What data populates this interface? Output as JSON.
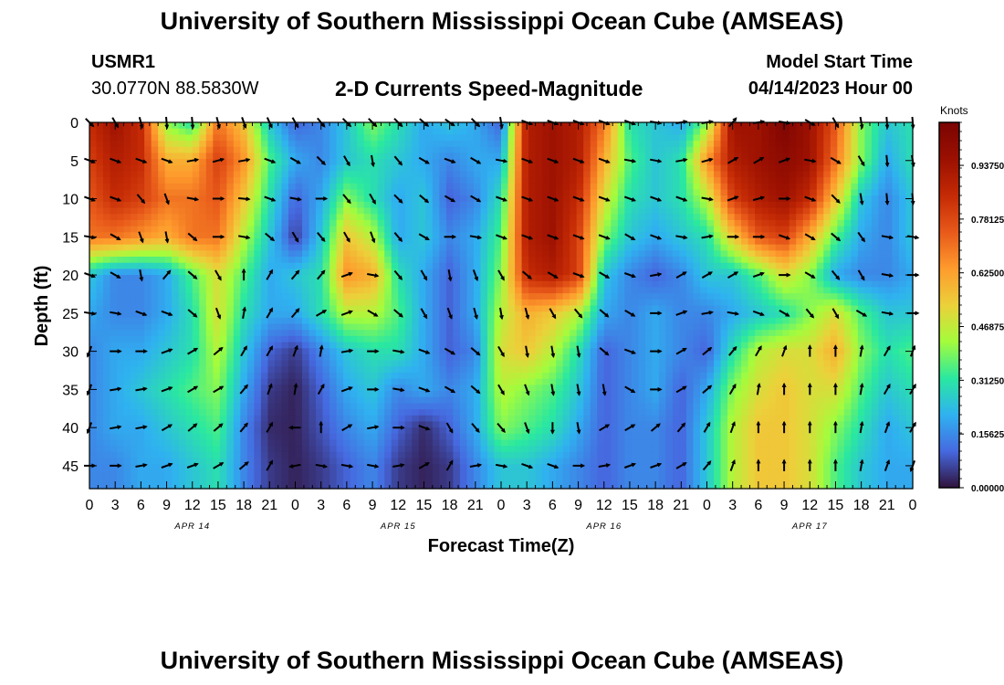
{
  "header": {
    "title": "University of Southern Mississippi Ocean Cube (AMSEAS)",
    "station_id": "USMR1",
    "station_coords": "30.0770N  88.5830W",
    "subtitle": "2-D Currents Speed-Magnitude",
    "model_start_label": "Model Start Time",
    "model_start_value": "04/14/2023 Hour 00",
    "bottom_title": "University of Southern Mississippi Ocean Cube (AMSEAS)"
  },
  "chart_data": {
    "type": "heatmap",
    "title": "2-D Currents Speed-Magnitude",
    "xlabel": "Forecast Time(Z)",
    "ylabel": "Depth (ft)",
    "x_tick_labels": [
      "0",
      "3",
      "6",
      "9",
      "12",
      "15",
      "18",
      "21",
      "0",
      "3",
      "6",
      "9",
      "12",
      "15",
      "18",
      "21",
      "0",
      "3",
      "6",
      "9",
      "12",
      "15",
      "18",
      "21",
      "0",
      "3",
      "6",
      "9",
      "12",
      "15",
      "18",
      "21",
      "0"
    ],
    "x_range_hours": [
      0,
      96
    ],
    "date_labels": [
      {
        "label": "APR 14",
        "hour": 12
      },
      {
        "label": "APR 15",
        "hour": 36
      },
      {
        "label": "APR 16",
        "hour": 60
      },
      {
        "label": "APR 17",
        "hour": 84
      }
    ],
    "y_ticks": [
      0,
      5,
      10,
      15,
      20,
      25,
      30,
      35,
      40,
      45
    ],
    "y_range_ft": [
      0,
      48
    ],
    "colorbar": {
      "label": "Knots",
      "range": [
        0,
        1.0625
      ],
      "tick_labels": [
        "0.93750",
        "0.78125",
        "0.62500",
        "0.46875",
        "0.31250",
        "0.15625",
        "0.00000"
      ],
      "tick_values": [
        0.9375,
        0.78125,
        0.625,
        0.46875,
        0.3125,
        0.15625,
        0.0
      ]
    },
    "arrow_hours": [
      0,
      3,
      6,
      9,
      12,
      15,
      18,
      21,
      24,
      27,
      30,
      33,
      36,
      39,
      42,
      45,
      48,
      51,
      54,
      57,
      60,
      63,
      66,
      69,
      72,
      75,
      78,
      81,
      84,
      87,
      90,
      93,
      96
    ],
    "arrow_depths_ft": [
      0,
      5,
      10,
      15,
      20,
      25,
      30,
      35,
      40,
      45
    ],
    "speed_knots_by_depth": [
      [
        0.85,
        0.95,
        0.85,
        0.4,
        0.3,
        0.7,
        0.55,
        0.25,
        0.1,
        0.15,
        0.25,
        0.4,
        0.3,
        0.2,
        0.25,
        0.2,
        0.1,
        0.9,
        0.95,
        0.9,
        0.7,
        0.3,
        0.25,
        0.2,
        0.4,
        0.95,
        0.95,
        1.05,
        0.95,
        0.75,
        0.4,
        0.25,
        0.3
      ],
      [
        0.8,
        0.9,
        0.85,
        0.6,
        0.6,
        0.8,
        0.65,
        0.35,
        0.2,
        0.15,
        0.25,
        0.3,
        0.25,
        0.2,
        0.15,
        0.2,
        0.2,
        0.9,
        0.95,
        0.9,
        0.6,
        0.35,
        0.25,
        0.3,
        0.65,
        0.9,
        0.95,
        1.0,
        0.95,
        0.7,
        0.4,
        0.2,
        0.3
      ],
      [
        0.75,
        0.85,
        0.8,
        0.7,
        0.7,
        0.75,
        0.55,
        0.3,
        0.1,
        0.2,
        0.4,
        0.3,
        0.2,
        0.25,
        0.1,
        0.15,
        0.3,
        0.9,
        0.95,
        0.85,
        0.5,
        0.3,
        0.25,
        0.3,
        0.45,
        0.8,
        0.9,
        0.95,
        0.85,
        0.55,
        0.25,
        0.15,
        0.25
      ],
      [
        0.7,
        0.7,
        0.65,
        0.6,
        0.7,
        0.7,
        0.45,
        0.25,
        0.05,
        0.25,
        0.55,
        0.45,
        0.2,
        0.25,
        0.15,
        0.2,
        0.35,
        0.9,
        0.95,
        0.8,
        0.4,
        0.25,
        0.2,
        0.25,
        0.3,
        0.55,
        0.75,
        0.8,
        0.6,
        0.35,
        0.2,
        0.15,
        0.25
      ],
      [
        0.25,
        0.15,
        0.15,
        0.2,
        0.35,
        0.5,
        0.35,
        0.2,
        0.25,
        0.3,
        0.65,
        0.6,
        0.3,
        0.2,
        0.1,
        0.2,
        0.4,
        0.85,
        0.9,
        0.8,
        0.25,
        0.15,
        0.1,
        0.15,
        0.25,
        0.25,
        0.35,
        0.5,
        0.4,
        0.2,
        0.15,
        0.15,
        0.2
      ],
      [
        0.2,
        0.15,
        0.15,
        0.2,
        0.3,
        0.5,
        0.3,
        0.2,
        0.2,
        0.3,
        0.45,
        0.45,
        0.35,
        0.2,
        0.1,
        0.2,
        0.45,
        0.6,
        0.55,
        0.45,
        0.2,
        0.15,
        0.2,
        0.15,
        0.15,
        0.2,
        0.25,
        0.3,
        0.4,
        0.5,
        0.35,
        0.25,
        0.25
      ],
      [
        0.15,
        0.2,
        0.2,
        0.25,
        0.3,
        0.45,
        0.25,
        0.1,
        0.05,
        0.15,
        0.25,
        0.3,
        0.3,
        0.2,
        0.1,
        0.15,
        0.5,
        0.55,
        0.45,
        0.3,
        0.1,
        0.15,
        0.2,
        0.15,
        0.1,
        0.3,
        0.45,
        0.5,
        0.5,
        0.6,
        0.4,
        0.3,
        0.35
      ],
      [
        0.15,
        0.2,
        0.25,
        0.3,
        0.35,
        0.4,
        0.2,
        0.05,
        0.02,
        0.1,
        0.2,
        0.25,
        0.15,
        0.2,
        0.15,
        0.2,
        0.45,
        0.4,
        0.35,
        0.25,
        0.1,
        0.15,
        0.2,
        0.1,
        0.2,
        0.4,
        0.5,
        0.55,
        0.5,
        0.5,
        0.35,
        0.25,
        0.3
      ],
      [
        0.15,
        0.2,
        0.2,
        0.25,
        0.3,
        0.35,
        0.15,
        0.03,
        0.02,
        0.08,
        0.15,
        0.2,
        0.1,
        0.03,
        0.1,
        0.2,
        0.4,
        0.35,
        0.3,
        0.2,
        0.1,
        0.15,
        0.15,
        0.1,
        0.25,
        0.45,
        0.55,
        0.55,
        0.5,
        0.4,
        0.3,
        0.2,
        0.25
      ],
      [
        0.15,
        0.15,
        0.2,
        0.2,
        0.25,
        0.3,
        0.15,
        0.05,
        0.02,
        0.05,
        0.1,
        0.15,
        0.05,
        0.02,
        0.05,
        0.15,
        0.25,
        0.25,
        0.2,
        0.15,
        0.1,
        0.15,
        0.15,
        0.1,
        0.25,
        0.45,
        0.55,
        0.55,
        0.5,
        0.35,
        0.25,
        0.2,
        0.2
      ]
    ],
    "direction_deg_to_by_depth": [
      [
        135,
        150,
        165,
        175,
        175,
        165,
        160,
        155,
        150,
        140,
        135,
        135,
        135,
        130,
        125,
        135,
        170,
        110,
        110,
        110,
        110,
        110,
        100,
        80,
        80,
        40,
        80,
        100,
        120,
        150,
        170,
        175,
        175
      ],
      [
        110,
        110,
        110,
        110,
        80,
        75,
        80,
        110,
        120,
        135,
        150,
        170,
        140,
        120,
        110,
        120,
        100,
        110,
        110,
        110,
        110,
        100,
        100,
        80,
        75,
        60,
        60,
        70,
        100,
        120,
        150,
        175,
        170
      ],
      [
        110,
        110,
        140,
        160,
        100,
        90,
        95,
        110,
        100,
        90,
        140,
        150,
        135,
        130,
        120,
        120,
        110,
        110,
        110,
        110,
        110,
        110,
        110,
        110,
        100,
        70,
        75,
        90,
        110,
        135,
        170,
        175,
        175
      ],
      [
        100,
        120,
        160,
        170,
        130,
        90,
        100,
        130,
        150,
        140,
        150,
        160,
        140,
        120,
        90,
        100,
        110,
        110,
        110,
        110,
        110,
        120,
        110,
        100,
        80,
        90,
        90,
        110,
        120,
        130,
        145,
        100,
        100
      ],
      [
        110,
        120,
        170,
        40,
        130,
        150,
        0,
        30,
        40,
        40,
        70,
        100,
        140,
        150,
        170,
        160,
        150,
        130,
        120,
        110,
        120,
        110,
        80,
        60,
        60,
        60,
        70,
        90,
        120,
        140,
        150,
        100,
        90
      ],
      [
        100,
        100,
        110,
        110,
        130,
        160,
        10,
        30,
        40,
        60,
        70,
        120,
        130,
        150,
        160,
        165,
        170,
        165,
        150,
        140,
        130,
        120,
        90,
        70,
        80,
        100,
        110,
        120,
        140,
        150,
        120,
        100,
        90
      ],
      [
        200,
        90,
        90,
        70,
        60,
        50,
        30,
        30,
        20,
        10,
        80,
        90,
        100,
        110,
        120,
        130,
        150,
        170,
        170,
        170,
        130,
        110,
        90,
        60,
        50,
        40,
        30,
        20,
        0,
        0,
        10,
        30,
        20
      ],
      [
        200,
        80,
        80,
        70,
        60,
        60,
        40,
        20,
        10,
        30,
        70,
        90,
        100,
        110,
        120,
        130,
        150,
        160,
        170,
        170,
        170,
        120,
        90,
        60,
        50,
        30,
        10,
        0,
        0,
        0,
        10,
        30,
        30
      ],
      [
        200,
        80,
        80,
        60,
        50,
        50,
        40,
        30,
        270,
        0,
        60,
        80,
        90,
        110,
        150,
        140,
        140,
        160,
        180,
        170,
        60,
        60,
        50,
        40,
        30,
        20,
        0,
        0,
        0,
        0,
        10,
        20,
        30
      ],
      [
        90,
        90,
        80,
        70,
        70,
        60,
        50,
        30,
        260,
        100,
        100,
        100,
        80,
        60,
        30,
        80,
        100,
        110,
        110,
        90,
        80,
        70,
        70,
        60,
        40,
        20,
        0,
        0,
        0,
        0,
        10,
        20,
        200
      ]
    ]
  }
}
